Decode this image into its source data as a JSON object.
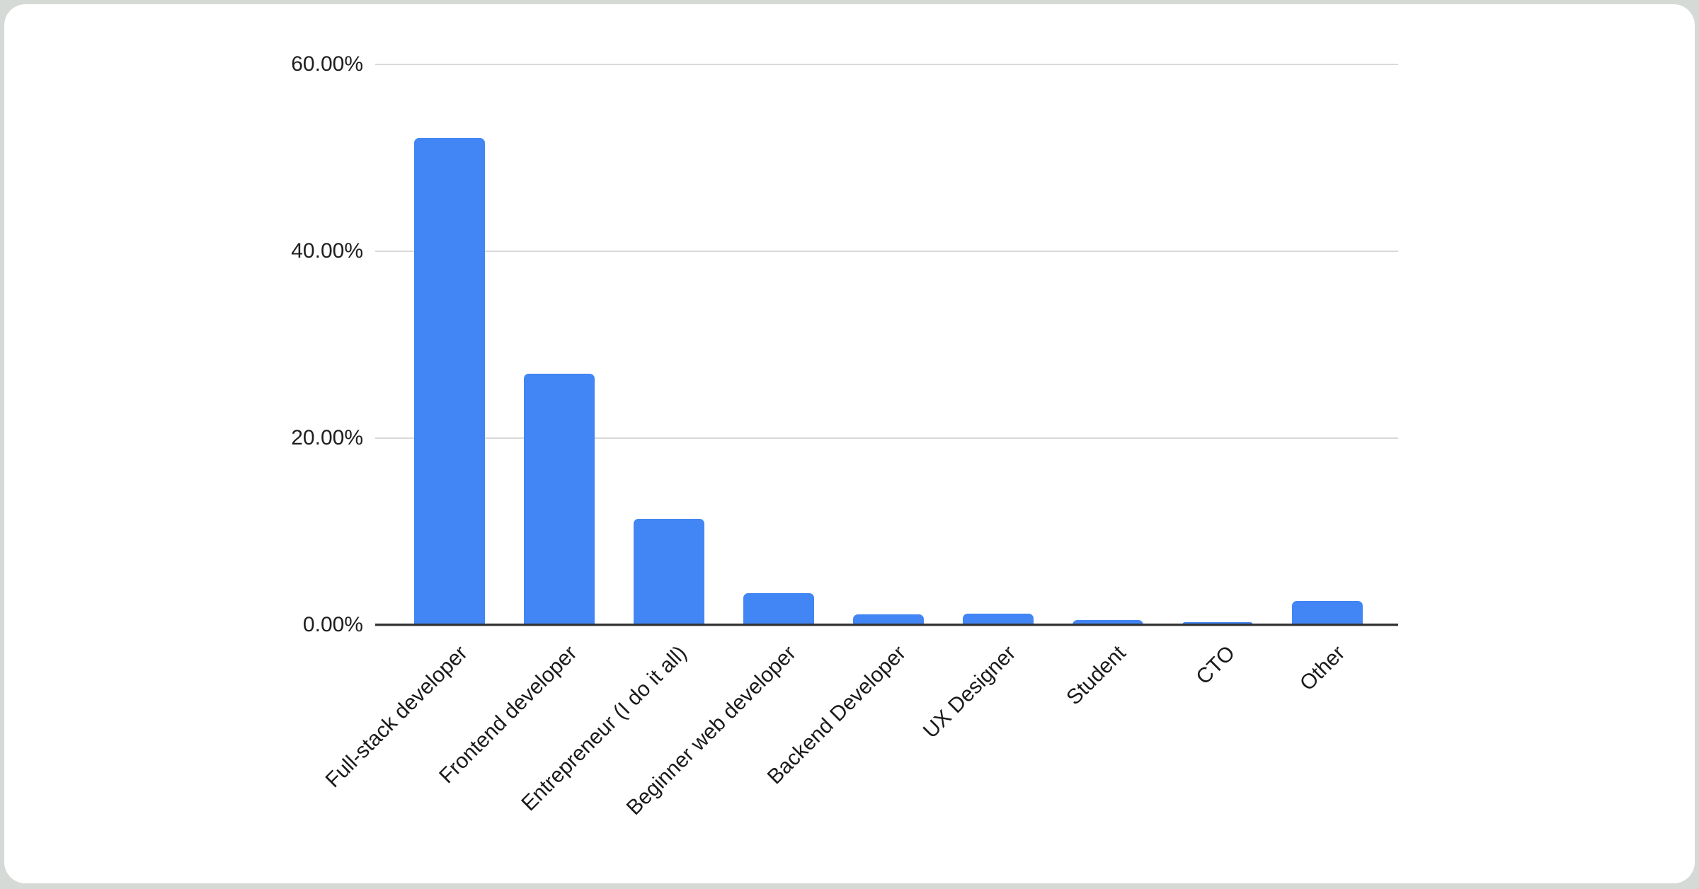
{
  "page": {
    "edge_color": "#d6dad7",
    "card_background": "#ffffff"
  },
  "chart_data": {
    "type": "bar",
    "title": "",
    "xlabel": "",
    "ylabel": "",
    "categories": [
      "Full-stack developer",
      "Frontend developer",
      "Entrepreneur (I do it all)",
      "Beginner web developer",
      "Backend Developer",
      "UX Designer",
      "Student",
      "CTO",
      "Other"
    ],
    "values": [
      52.1,
      26.9,
      11.4,
      3.4,
      1.1,
      1.2,
      0.5,
      0.3,
      2.6
    ],
    "value_unit": "%",
    "ylim": [
      0,
      60
    ],
    "y_ticks": [
      {
        "value": 0,
        "label": "0.00%"
      },
      {
        "value": 20,
        "label": "20.00%"
      },
      {
        "value": 40,
        "label": "40.00%"
      },
      {
        "value": 60,
        "label": "60.00%"
      }
    ],
    "grid": true,
    "legend_position": "none",
    "x_label_rotation_deg": -45,
    "colors": {
      "bar": "#4285f4",
      "gridline": "#d9d9d9",
      "axis_line": "#333333",
      "tick_text": "#1f1f1f"
    }
  }
}
